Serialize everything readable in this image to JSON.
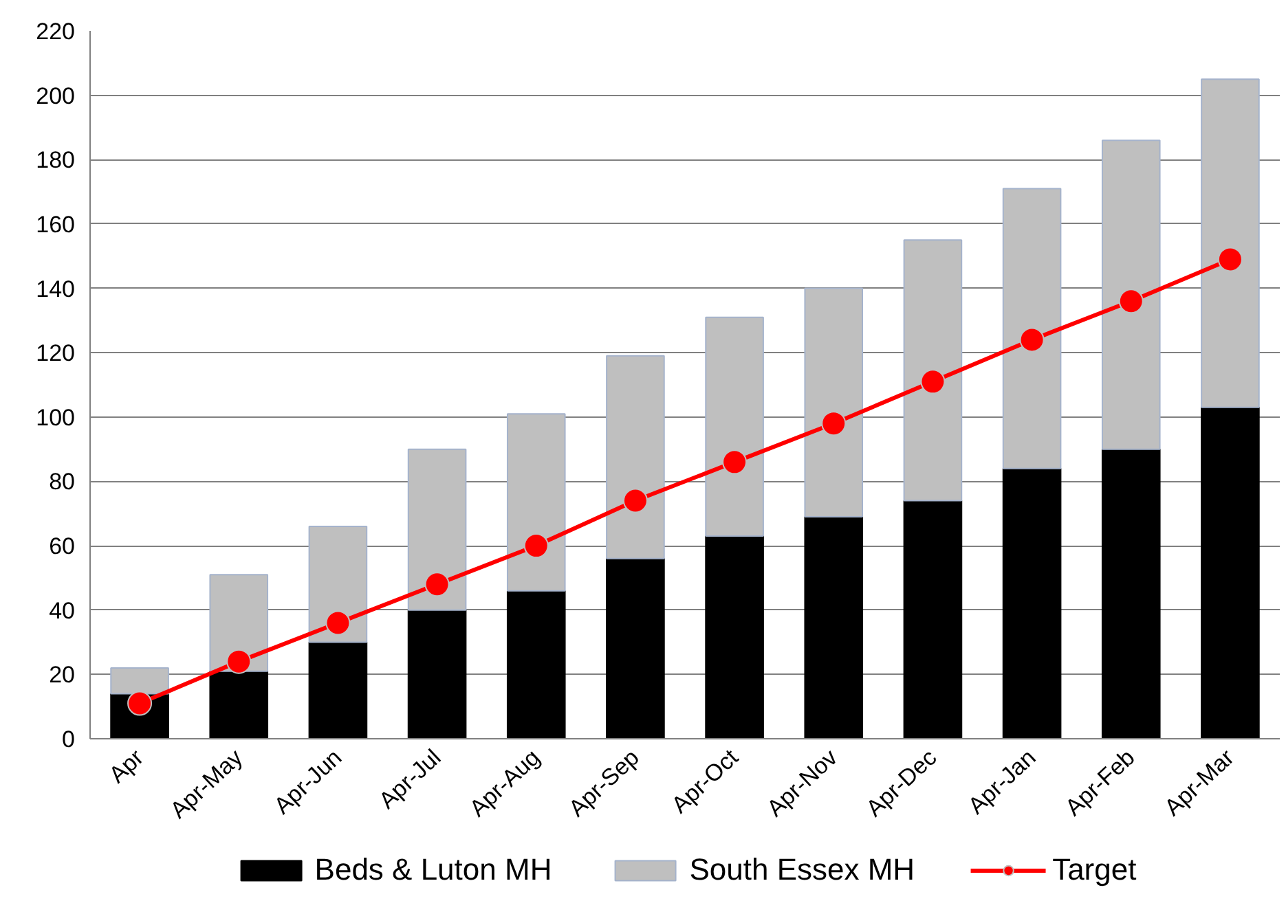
{
  "chart_data": {
    "type": "bar",
    "stacked": true,
    "categories": [
      "Apr",
      "Apr-May",
      "Apr-Jun",
      "Apr-Jul",
      "Apr-Aug",
      "Apr-Sep",
      "Apr-Oct",
      "Apr-Nov",
      "Apr-Dec",
      "Apr-Jan",
      "Apr-Feb",
      "Apr-Mar"
    ],
    "series": [
      {
        "name": "Beds & Luton MH",
        "color": "#000000",
        "values": [
          14,
          21,
          30,
          40,
          46,
          56,
          63,
          69,
          74,
          84,
          90,
          103
        ]
      },
      {
        "name": "South Essex MH",
        "color": "#bfbfbf",
        "values": [
          8,
          30,
          36,
          50,
          55,
          63,
          68,
          71,
          81,
          87,
          96,
          102
        ]
      },
      {
        "name": "Target",
        "type": "line",
        "color": "#ff0000",
        "marker": "circle",
        "values": [
          11,
          24,
          36,
          48,
          60,
          74,
          86,
          98,
          111,
          124,
          136,
          149
        ]
      }
    ],
    "ylim": [
      0,
      220
    ],
    "yticks": [
      0,
      20,
      40,
      60,
      80,
      100,
      120,
      140,
      160,
      180,
      200,
      220
    ],
    "grid": "y",
    "legend": "bottom"
  }
}
